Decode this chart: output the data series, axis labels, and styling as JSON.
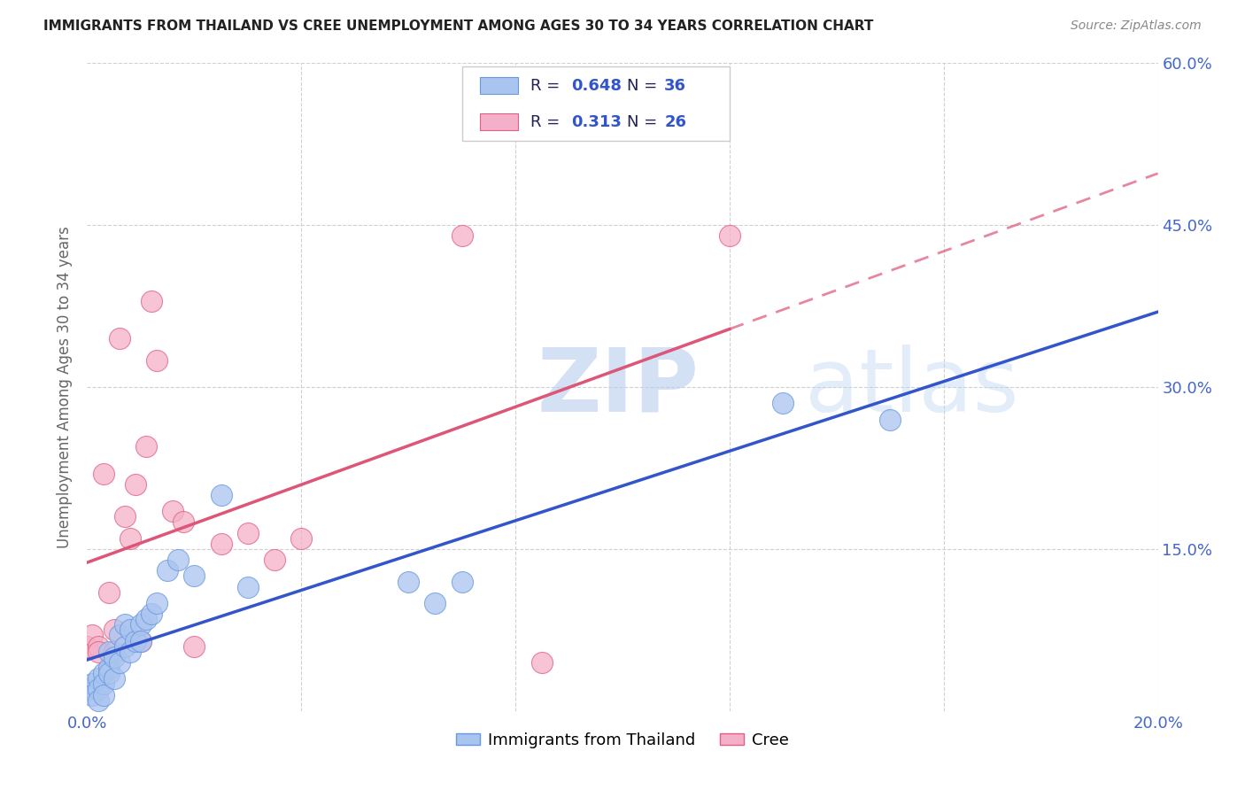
{
  "title": "IMMIGRANTS FROM THAILAND VS CREE UNEMPLOYMENT AMONG AGES 30 TO 34 YEARS CORRELATION CHART",
  "source": "Source: ZipAtlas.com",
  "ylabel": "Unemployment Among Ages 30 to 34 years",
  "xlim": [
    0.0,
    0.2
  ],
  "ylim": [
    0.0,
    0.6
  ],
  "xticks": [
    0.0,
    0.04,
    0.08,
    0.12,
    0.16,
    0.2
  ],
  "yticks": [
    0.0,
    0.15,
    0.3,
    0.45,
    0.6
  ],
  "ytick_labels_right": [
    "",
    "15.0%",
    "30.0%",
    "45.0%",
    "60.0%"
  ],
  "xtick_labels": [
    "0.0%",
    "",
    "",
    "",
    "",
    "20.0%"
  ],
  "series1_name": "Immigrants from Thailand",
  "series1_color": "#aac4f0",
  "series1_edge": "#6699dd",
  "series1_R": "0.648",
  "series1_N": "36",
  "series2_name": "Cree",
  "series2_color": "#f4b0c8",
  "series2_edge": "#e06080",
  "series2_R": "0.313",
  "series2_N": "26",
  "line1_color": "#3355cc",
  "line2_color": "#dd5577",
  "background_color": "#ffffff",
  "watermark_text": "ZIPatlas",
  "watermark_color": "#ccddf5",
  "grid_color": "#d0d0d0",
  "tick_color": "#4466cc",
  "legend_text_color": "#222255",
  "legend_val_color": "#3355cc",
  "series1_x": [
    0.0,
    0.001,
    0.001,
    0.002,
    0.002,
    0.002,
    0.003,
    0.003,
    0.003,
    0.004,
    0.004,
    0.004,
    0.005,
    0.005,
    0.006,
    0.006,
    0.007,
    0.007,
    0.008,
    0.008,
    0.009,
    0.01,
    0.01,
    0.011,
    0.012,
    0.013,
    0.015,
    0.017,
    0.02,
    0.025,
    0.03,
    0.06,
    0.065,
    0.07,
    0.13,
    0.15
  ],
  "series1_y": [
    0.02,
    0.025,
    0.015,
    0.03,
    0.02,
    0.01,
    0.035,
    0.025,
    0.015,
    0.04,
    0.055,
    0.035,
    0.05,
    0.03,
    0.07,
    0.045,
    0.08,
    0.06,
    0.075,
    0.055,
    0.065,
    0.08,
    0.065,
    0.085,
    0.09,
    0.1,
    0.13,
    0.14,
    0.125,
    0.2,
    0.115,
    0.12,
    0.1,
    0.12,
    0.285,
    0.27
  ],
  "series2_x": [
    0.0,
    0.001,
    0.002,
    0.002,
    0.003,
    0.004,
    0.005,
    0.005,
    0.006,
    0.007,
    0.008,
    0.009,
    0.01,
    0.011,
    0.012,
    0.013,
    0.016,
    0.018,
    0.02,
    0.025,
    0.03,
    0.035,
    0.04,
    0.07,
    0.085,
    0.12
  ],
  "series2_y": [
    0.06,
    0.07,
    0.06,
    0.055,
    0.22,
    0.11,
    0.075,
    0.055,
    0.345,
    0.18,
    0.16,
    0.21,
    0.065,
    0.245,
    0.38,
    0.325,
    0.185,
    0.175,
    0.06,
    0.155,
    0.165,
    0.14,
    0.16,
    0.44,
    0.045,
    0.44
  ],
  "line1_intercept": 0.022,
  "line1_slope": 1.65,
  "line2_intercept": 0.145,
  "line2_slope": 2.3
}
